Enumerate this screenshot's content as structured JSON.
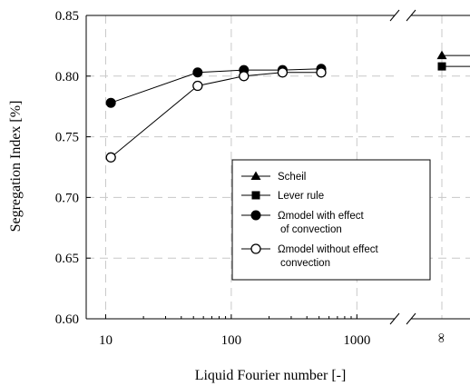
{
  "chart_data": {
    "type": "line",
    "xlabel": "Liquid Fourier number [-]",
    "ylabel": "Segregation Index [%]",
    "x_scale": "log",
    "xlim": [
      7,
      2000
    ],
    "ylim": [
      0.6,
      0.85
    ],
    "x_ticks": [
      "10",
      "100",
      "1000"
    ],
    "y_ticks": [
      "0.60",
      "0.65",
      "0.70",
      "0.75",
      "0.80",
      "0.85"
    ],
    "infinity_label": "∞",
    "grid": true,
    "legend_position": "lower-right",
    "series": [
      {
        "name": "Scheil",
        "marker": "filled-triangle",
        "x": [
          "∞"
        ],
        "y": [
          0.817
        ]
      },
      {
        "name": "Lever rule",
        "marker": "filled-square",
        "x": [
          "∞"
        ],
        "y": [
          0.808
        ]
      },
      {
        "name": "Ωmodel with effect of convection",
        "marker": "filled-circle",
        "x": [
          11,
          54,
          126,
          256,
          520
        ],
        "y": [
          0.778,
          0.803,
          0.805,
          0.805,
          0.806
        ]
      },
      {
        "name": "Ωmodel without effect convection",
        "marker": "open-circle",
        "x": [
          11,
          54,
          126,
          256,
          520
        ],
        "y": [
          0.733,
          0.792,
          0.8,
          0.803,
          0.803
        ]
      }
    ],
    "legend_lines": [
      [
        "Scheil"
      ],
      [
        "Lever rule"
      ],
      [
        "Ωmodel with effect",
        "of convection"
      ],
      [
        "Ωmodel without effect",
        "convection"
      ]
    ]
  }
}
